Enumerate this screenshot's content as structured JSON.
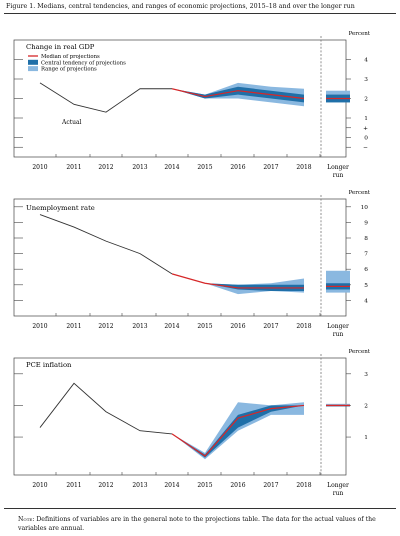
{
  "figure_title": "Figure 1. Medians, central tendencies, and ranges of economic projections, 2015–18 and over the longer run",
  "note": {
    "label": "Note:",
    "text": "Definitions of variables are in the general note to the projections table. The data for the actual values of the variables are annual."
  },
  "colors": {
    "actual": "#333333",
    "median": "#d62728",
    "central_tendency": "#1f6fa8",
    "range": "#8ab8e0",
    "longer_run_divider": "#777777"
  },
  "chart_data": [
    {
      "type": "line",
      "title": "Change in real GDP",
      "unit_label": "Percent",
      "actual_label": "Actual",
      "legend": {
        "placement": "top-left",
        "entries": [
          "Median of projections",
          "Central tendency of projections",
          "Range of projections"
        ]
      },
      "categories": [
        "2010",
        "2011",
        "2012",
        "2013",
        "2014",
        "2015",
        "2016",
        "2017",
        "2018"
      ],
      "longer_run_label": [
        "Longer",
        "run"
      ],
      "ylim": [
        -1,
        5
      ],
      "yticks": [
        "4",
        "3",
        "2",
        "1",
        "+",
        "0",
        "−"
      ],
      "actual": {
        "x": [
          "2010",
          "2011",
          "2012",
          "2013",
          "2014"
        ],
        "values": [
          2.8,
          1.7,
          1.3,
          2.5,
          2.5
        ]
      },
      "projections": {
        "x": [
          "2014",
          "2015",
          "2016",
          "2017",
          "2018"
        ],
        "median": [
          2.5,
          2.1,
          2.4,
          2.2,
          2.0
        ],
        "central_low": [
          2.5,
          2.0,
          2.2,
          2.0,
          1.8
        ],
        "central_high": [
          2.5,
          2.2,
          2.6,
          2.4,
          2.2
        ],
        "range_low": [
          2.5,
          2.0,
          2.0,
          1.8,
          1.6
        ],
        "range_high": [
          2.5,
          2.2,
          2.8,
          2.6,
          2.5
        ]
      },
      "longer_run": {
        "median": 2.0,
        "central_low": 1.8,
        "central_high": 2.2,
        "range_low": 1.8,
        "range_high": 2.4
      }
    },
    {
      "type": "line",
      "title": "Unemployment rate",
      "unit_label": "Percent",
      "categories": [
        "2010",
        "2011",
        "2012",
        "2013",
        "2014",
        "2015",
        "2016",
        "2017",
        "2018"
      ],
      "longer_run_label": [
        "Longer",
        "run"
      ],
      "ylim": [
        3,
        10.5
      ],
      "yticks": [
        "10",
        "9",
        "8",
        "7",
        "6",
        "5",
        "4"
      ],
      "actual": {
        "x": [
          "2010",
          "2011",
          "2012",
          "2013",
          "2014"
        ],
        "values": [
          9.5,
          8.7,
          7.8,
          7.0,
          5.7
        ]
      },
      "projections": {
        "x": [
          "2014",
          "2015",
          "2016",
          "2017",
          "2018"
        ],
        "median": [
          5.7,
          5.1,
          4.8,
          4.8,
          4.8
        ],
        "central_low": [
          5.7,
          5.1,
          4.7,
          4.6,
          4.6
        ],
        "central_high": [
          5.7,
          5.1,
          5.0,
          5.0,
          5.0
        ],
        "range_low": [
          5.7,
          5.1,
          4.4,
          4.6,
          4.5
        ],
        "range_high": [
          5.7,
          5.1,
          5.0,
          5.1,
          5.4
        ]
      },
      "longer_run": {
        "median": 4.9,
        "central_low": 4.7,
        "central_high": 5.1,
        "range_low": 4.5,
        "range_high": 5.9
      }
    },
    {
      "type": "line",
      "title": "PCE inflation",
      "unit_label": "Percent",
      "categories": [
        "2010",
        "2011",
        "2012",
        "2013",
        "2014",
        "2015",
        "2016",
        "2017",
        "2018"
      ],
      "longer_run_label": [
        "Longer",
        "run"
      ],
      "ylim": [
        -0.2,
        3.5
      ],
      "yticks": [
        "3",
        "2",
        "1"
      ],
      "actual": {
        "x": [
          "2010",
          "2011",
          "2012",
          "2013",
          "2014"
        ],
        "values": [
          1.3,
          2.7,
          1.8,
          1.2,
          1.1
        ]
      },
      "projections": {
        "x": [
          "2014",
          "2015",
          "2016",
          "2017",
          "2018"
        ],
        "median": [
          1.1,
          0.4,
          1.6,
          1.9,
          2.0
        ],
        "central_low": [
          1.1,
          0.35,
          1.3,
          1.8,
          2.0
        ],
        "central_high": [
          1.1,
          0.45,
          1.7,
          2.0,
          2.0
        ],
        "range_low": [
          1.1,
          0.3,
          1.2,
          1.7,
          1.7
        ],
        "range_high": [
          1.1,
          0.5,
          2.1,
          2.0,
          2.1
        ]
      },
      "longer_run": {
        "median": 2.0,
        "central_low": 2.0,
        "central_high": 2.0,
        "range_low": 2.0,
        "range_high": 2.05
      }
    }
  ]
}
